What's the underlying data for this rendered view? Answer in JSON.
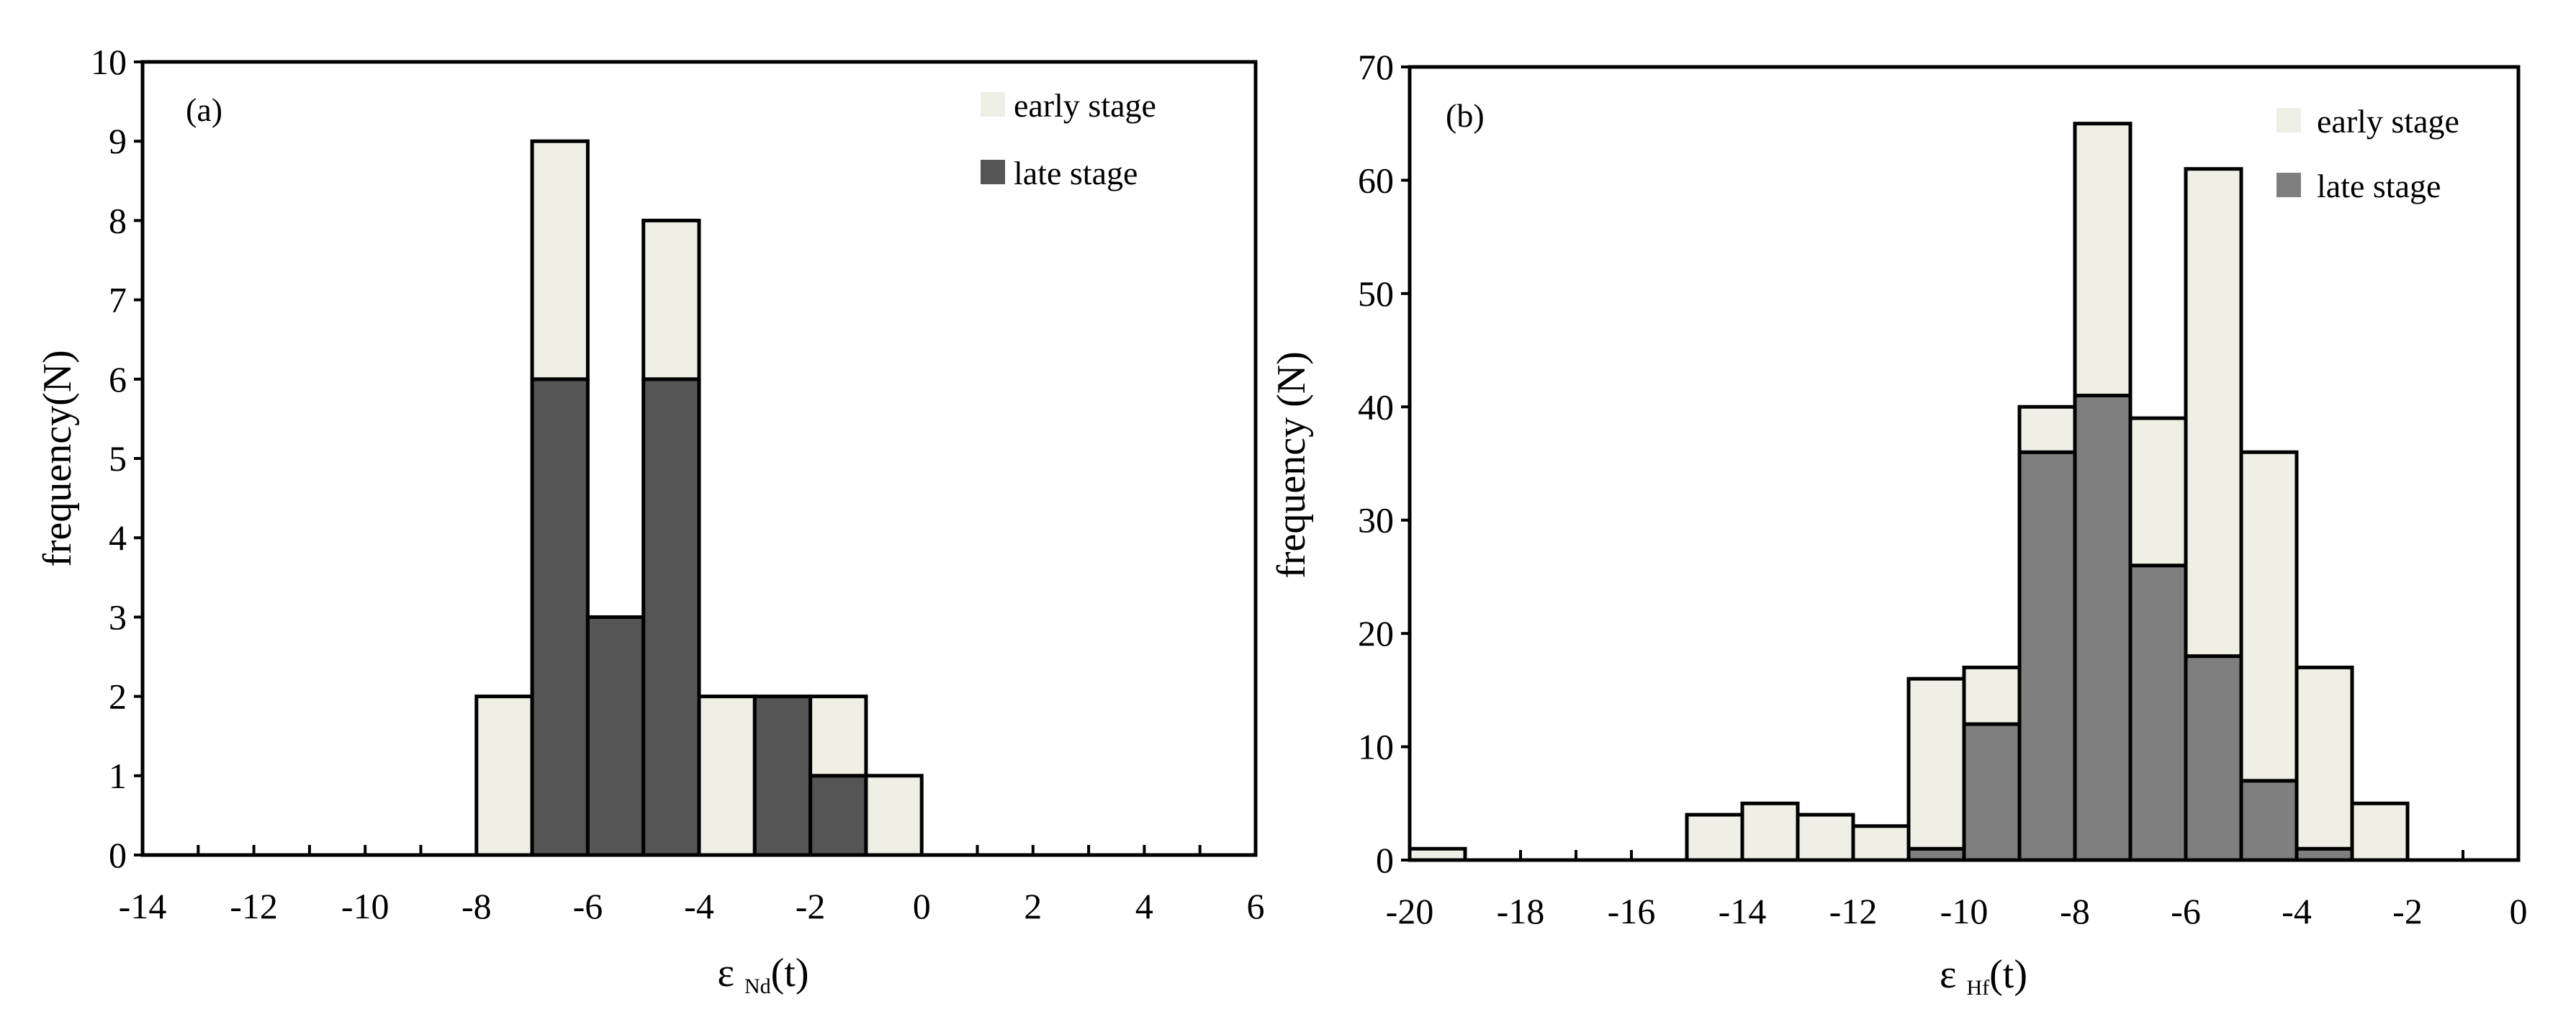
{
  "chart_data": [
    {
      "type": "bar",
      "panel_label": "(a)",
      "stacked": true,
      "xlabel": "ε Nd(t)",
      "ylabel": "frequency(N)",
      "xlim": [
        -14,
        6
      ],
      "ylim": [
        0,
        10
      ],
      "xticks": [
        -14,
        -12,
        -10,
        -8,
        -6,
        -4,
        -2,
        0,
        2,
        4,
        6
      ],
      "yticks": [
        0,
        1,
        2,
        3,
        4,
        5,
        6,
        7,
        8,
        9,
        10
      ],
      "bin_width": 1,
      "bins": [
        -8,
        -7,
        -6,
        -5,
        -4,
        -3,
        -2,
        -1
      ],
      "series": [
        {
          "name": "late stage",
          "color": "#555555",
          "values": [
            0,
            6,
            3,
            6,
            0,
            2,
            1,
            0
          ]
        },
        {
          "name": "early stage",
          "color": "#efefe6",
          "values": [
            2,
            3,
            0,
            2,
            2,
            0,
            1,
            1
          ]
        }
      ],
      "legend": "top-right",
      "grid": false
    },
    {
      "type": "bar",
      "panel_label": "(b)",
      "stacked": true,
      "xlabel": "ε Hf(t)",
      "ylabel": "frequency (N)",
      "xlim": [
        -20,
        0
      ],
      "ylim": [
        0,
        70
      ],
      "xticks": [
        -20,
        -18,
        -16,
        -14,
        -12,
        -10,
        -8,
        -6,
        -4,
        -2,
        0
      ],
      "yticks": [
        0,
        10,
        20,
        30,
        40,
        50,
        60,
        70
      ],
      "bin_width": 1,
      "bins": [
        -20,
        -15,
        -14,
        -13,
        -12,
        -11,
        -10,
        -9,
        -8,
        -7,
        -6,
        -5,
        -4,
        -3
      ],
      "series": [
        {
          "name": "late stage",
          "color": "#7f7f7f",
          "values": [
            0,
            0,
            0,
            0,
            0,
            1,
            12,
            36,
            41,
            26,
            18,
            7,
            1,
            0
          ]
        },
        {
          "name": "early stage",
          "color": "#efefe6",
          "values": [
            1,
            4,
            5,
            4,
            3,
            15,
            5,
            4,
            24,
            13,
            43,
            29,
            16,
            5
          ]
        }
      ],
      "legend": "top-right",
      "grid": false
    }
  ]
}
